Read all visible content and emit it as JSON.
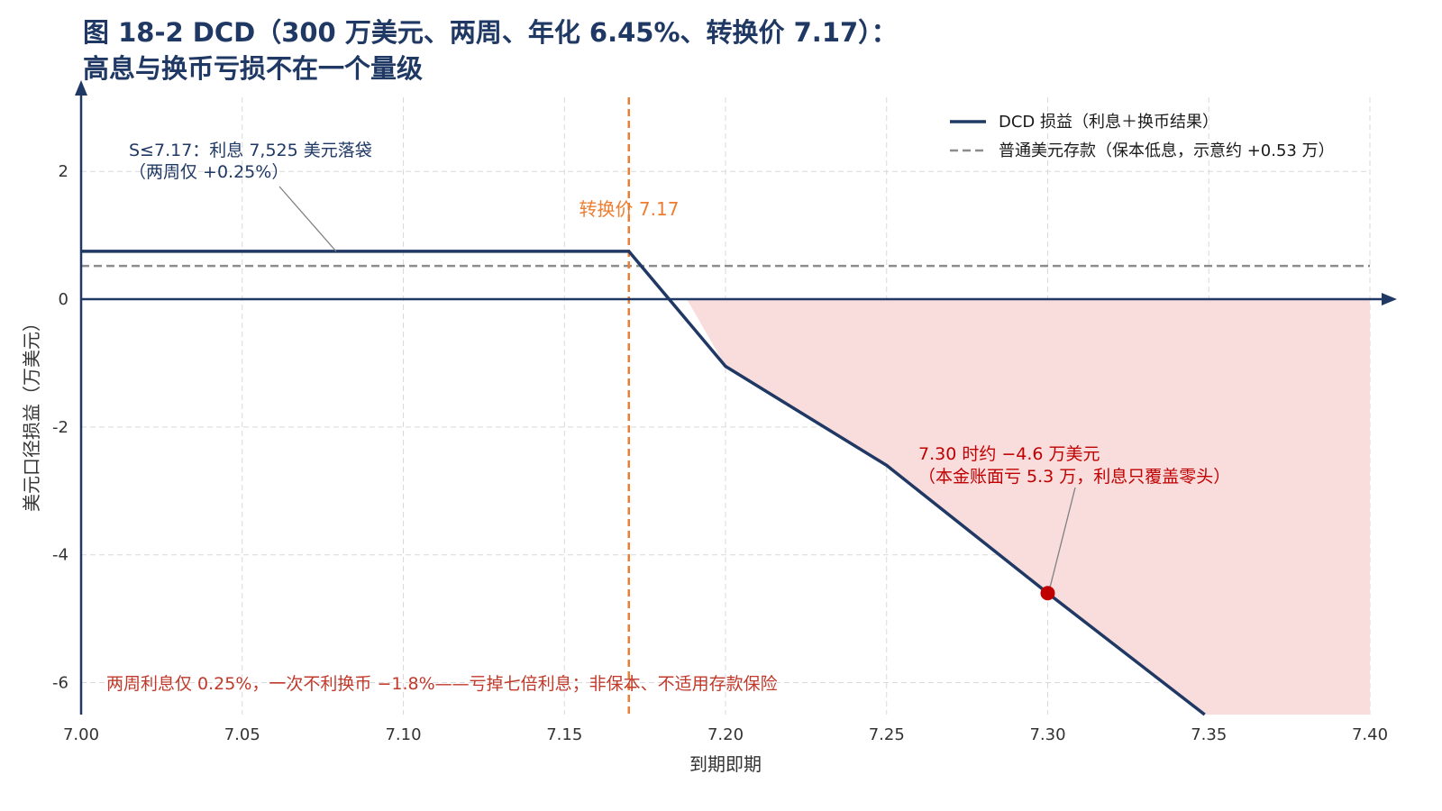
{
  "title": {
    "line1": "图 18-2 DCD（300 万美元、两周、年化 6.45%、转换价 7.17）：",
    "line2": "高息与换币亏损不在一个量级"
  },
  "colors": {
    "primary": "#1f3864",
    "deposit": "#8c8c8c",
    "strike": "#ed7d31",
    "loss_fill": "#f9dcdc",
    "marker": "#c00000",
    "note": "#c0392b",
    "grid": "#d9d9d9"
  },
  "chart_data": {
    "type": "line",
    "xlabel": "到期即期",
    "ylabel": "美元口径损益（万美元）",
    "xlim": [
      7.0,
      7.4
    ],
    "ylim": [
      -6.5,
      3.3
    ],
    "x_ticks": [
      7.0,
      7.05,
      7.1,
      7.15,
      7.2,
      7.25,
      7.3,
      7.35,
      7.4
    ],
    "x_tick_labels": [
      "7.00",
      "7.05",
      "7.10",
      "7.15",
      "7.20",
      "7.25",
      "7.30",
      "7.35",
      "7.40"
    ],
    "y_ticks": [
      2,
      0,
      -2,
      -4,
      -6
    ],
    "y_tick_labels": [
      "2",
      "0",
      "-2",
      "-4",
      "-6"
    ],
    "grid": true,
    "legend_position": "top-right",
    "series": [
      {
        "name": "DCD 损益（利息＋换币结果）",
        "style": "solid",
        "points": [
          [
            7.0,
            0.75
          ],
          [
            7.17,
            0.75
          ],
          [
            7.2,
            -1.05
          ],
          [
            7.25,
            -2.6
          ],
          [
            7.3,
            -4.6
          ],
          [
            7.35,
            -6.55
          ]
        ]
      },
      {
        "name": "普通美元存款（保本低息，示意约 +0.53 万）",
        "style": "dashed",
        "points": [
          [
            7.0,
            0.52
          ],
          [
            7.4,
            0.52
          ]
        ]
      }
    ],
    "strike": {
      "x": 7.17,
      "label": "转换价 7.17"
    },
    "loss_region": {
      "x_from": 7.188,
      "x_to": 7.4
    },
    "highlight_point": {
      "x": 7.3,
      "y": -4.6
    },
    "annotations": {
      "interest_line1": "S≤7.17：利息 7,525 美元落袋",
      "interest_line2": "（两周仅 +0.25%）",
      "loss_line1": "7.30 时约 −4.6 万美元",
      "loss_line2": "（本金账面亏 5.3 万，利息只覆盖零头）",
      "footer_note": "两周利息仅 0.25%，一次不利换币 −1.8%——亏掉七倍利息；非保本、不适用存款保险"
    }
  }
}
